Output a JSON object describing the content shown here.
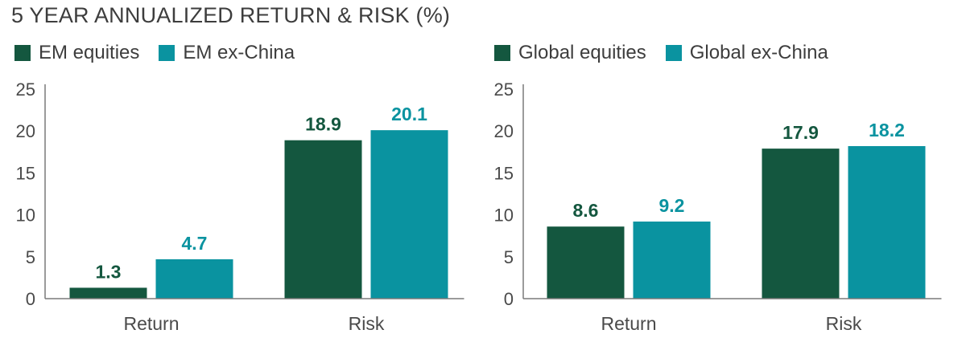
{
  "title": "5 YEAR ANNUALIZED RETURN & RISK (%)",
  "colors": {
    "dark": "#14573F",
    "teal": "#0A93A0"
  },
  "chart_data": [
    {
      "type": "bar",
      "categories": [
        "Return",
        "Risk"
      ],
      "series": [
        {
          "name": "EM equities",
          "values": [
            1.3,
            18.9
          ],
          "color": "#14573F"
        },
        {
          "name": "EM ex-China",
          "values": [
            4.7,
            20.1
          ],
          "color": "#0A93A0"
        }
      ],
      "data_labels": [
        [
          "1.3",
          "18.9"
        ],
        [
          "4.7",
          "20.1"
        ]
      ],
      "ylim": [
        0,
        25
      ],
      "yticks": [
        "0",
        "5",
        "10",
        "15",
        "20",
        "25"
      ],
      "legend": "top-left",
      "grid": false
    },
    {
      "type": "bar",
      "categories": [
        "Return",
        "Risk"
      ],
      "series": [
        {
          "name": "Global equities",
          "values": [
            8.6,
            17.9
          ],
          "color": "#14573F"
        },
        {
          "name": "Global ex-China",
          "values": [
            9.2,
            18.2
          ],
          "color": "#0A93A0"
        }
      ],
      "data_labels": [
        [
          "8.6",
          "17.9"
        ],
        [
          "9.2",
          "18.2"
        ]
      ],
      "ylim": [
        0,
        25
      ],
      "yticks": [
        "0",
        "5",
        "10",
        "15",
        "20",
        "25"
      ],
      "legend": "top-left",
      "grid": false
    }
  ]
}
